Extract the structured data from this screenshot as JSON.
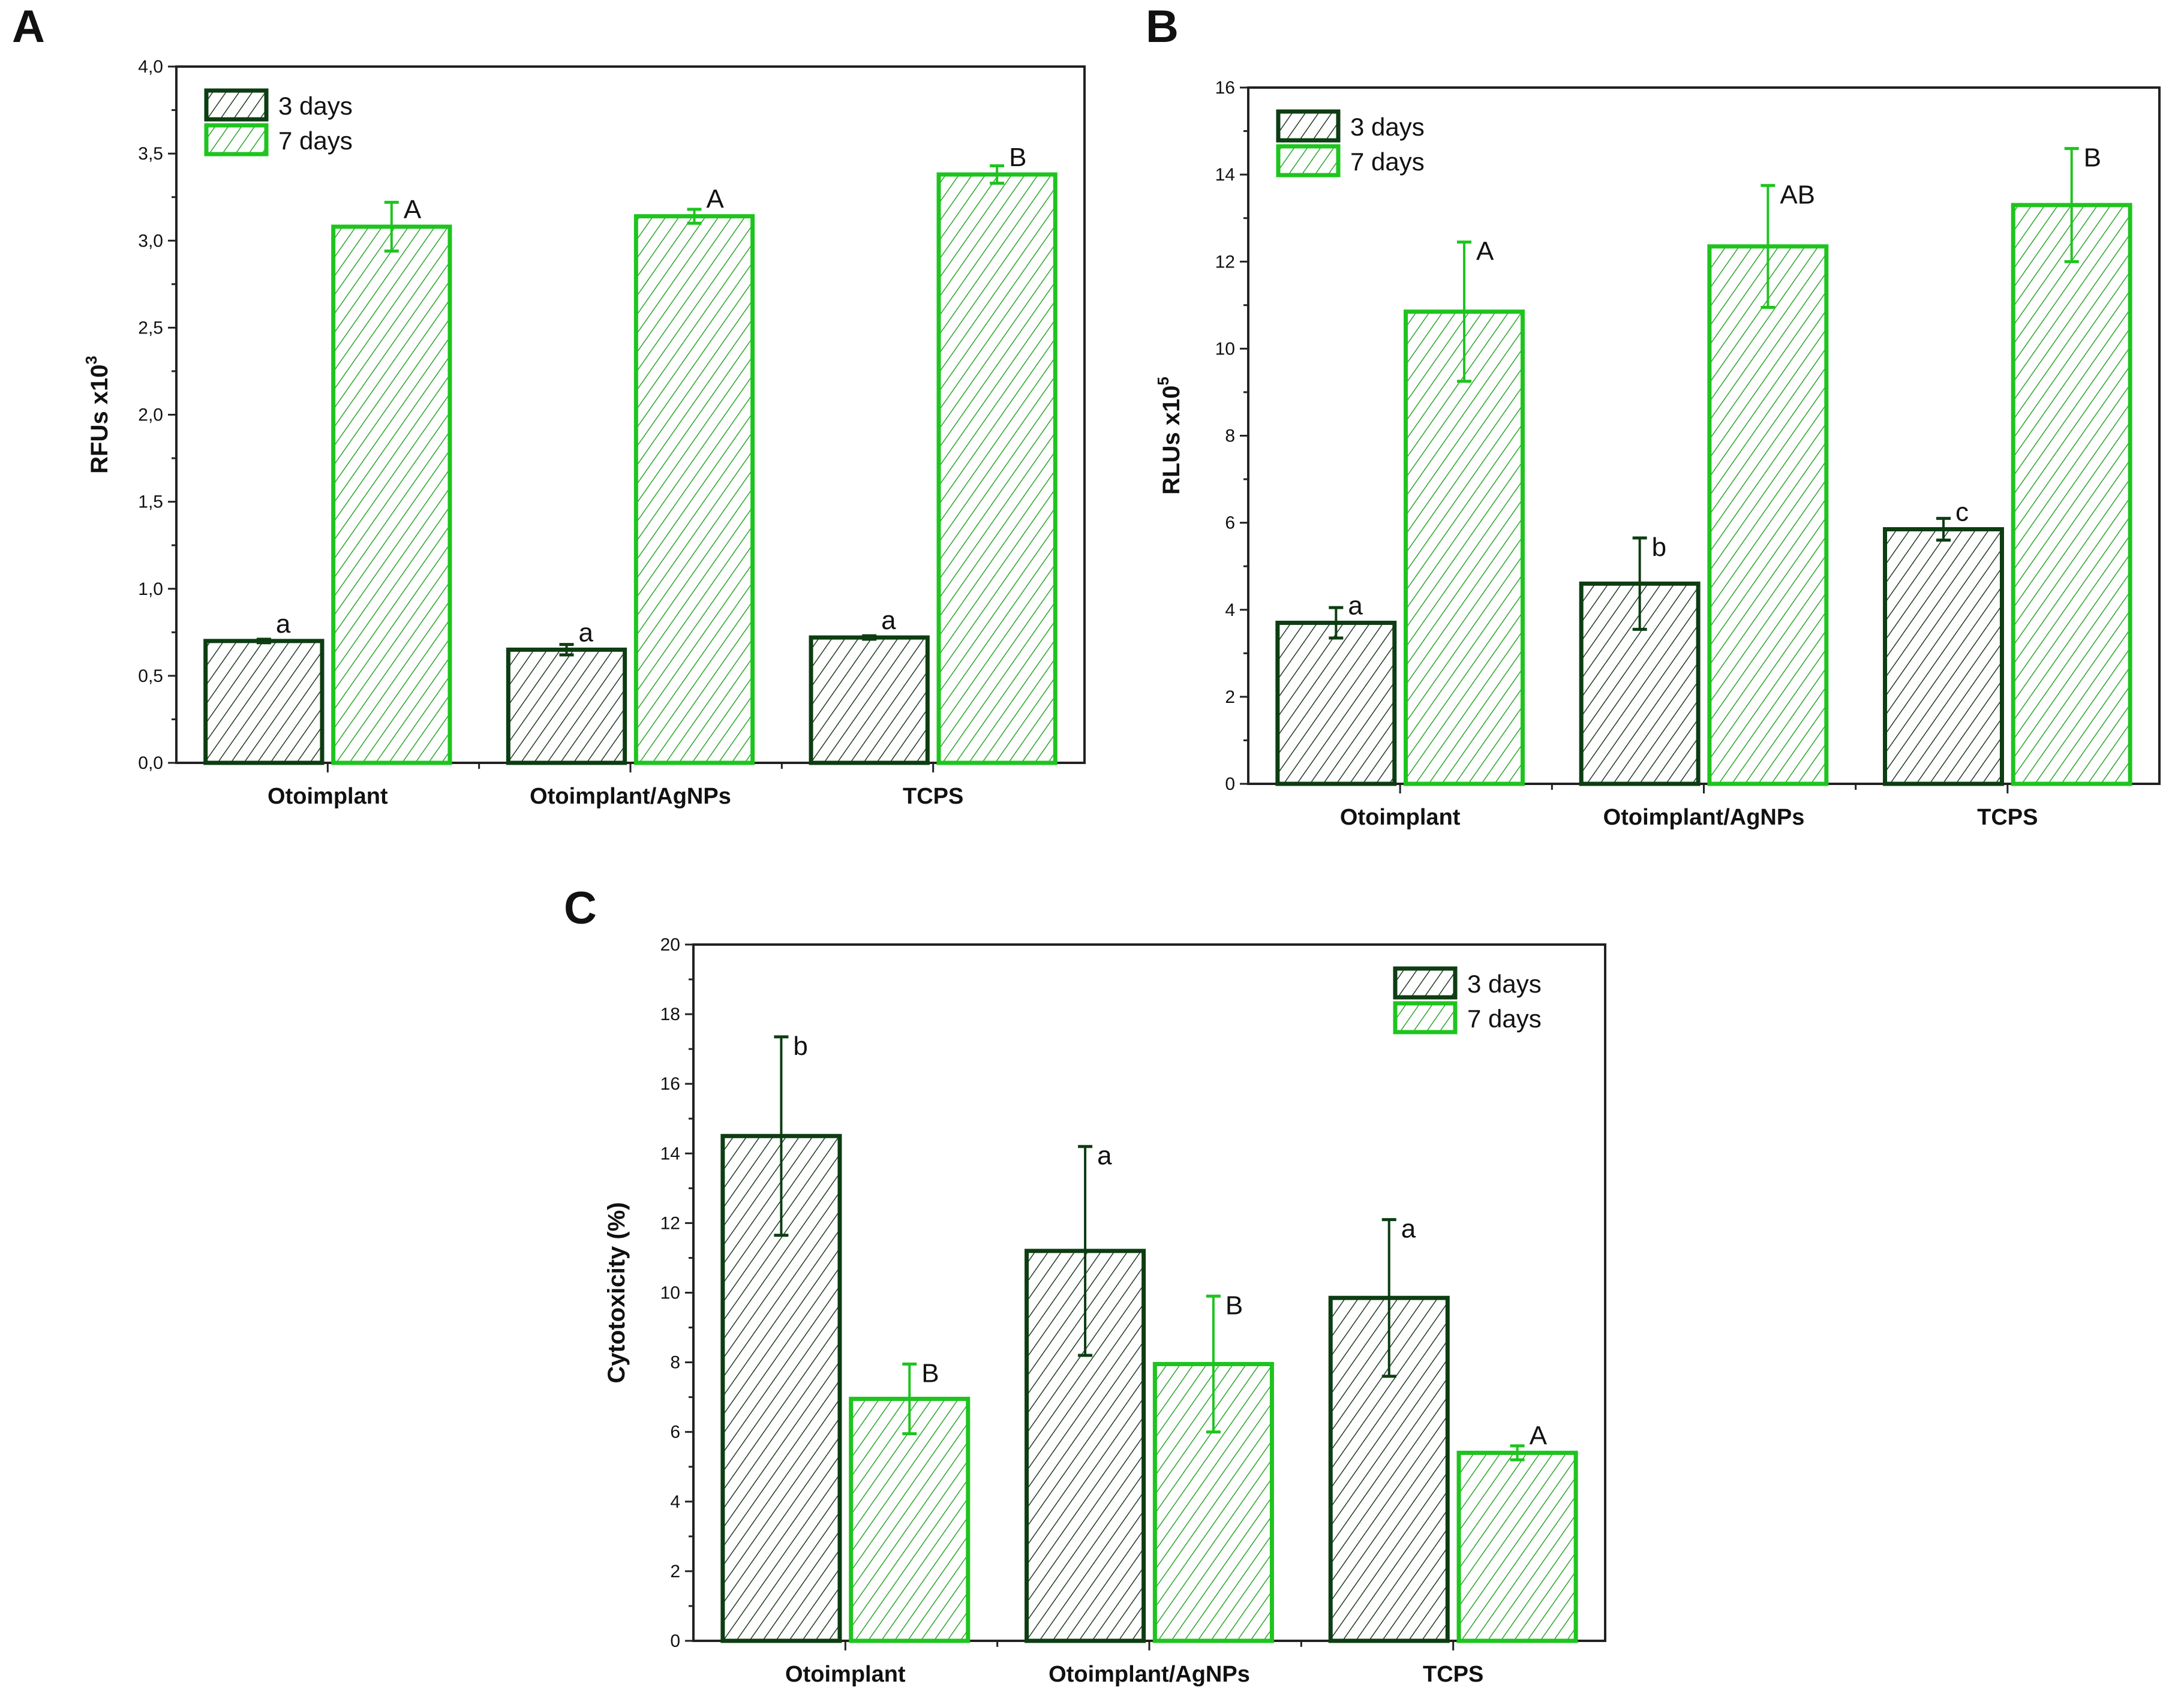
{
  "colors": {
    "day3_stroke": "#0d3d12",
    "day3_hatch": "#1f3a22",
    "day7_stroke": "#1ec41e",
    "day7_hatch": "#2aa52a",
    "axis": "#222222"
  },
  "chart_data": [
    {
      "panel": "A",
      "type": "bar",
      "categories": [
        "Otoimplant",
        "Otoimplant/AgNPs",
        "TCPS"
      ],
      "ylabel": "RFUs x10",
      "ylabel_sup": "3",
      "ylim": [
        0,
        4
      ],
      "ytick_step": 0.5,
      "decimal_comma": true,
      "ytick_decimals": 1,
      "legend": "top-left",
      "series": [
        {
          "name": "3 days",
          "values": [
            0.7,
            0.65,
            0.72
          ],
          "errors": [
            0.01,
            0.03,
            0.01
          ],
          "letters": [
            "a",
            "a",
            "a"
          ]
        },
        {
          "name": "7 days",
          "values": [
            3.08,
            3.14,
            3.38
          ],
          "errors": [
            0.14,
            0.04,
            0.05
          ],
          "letters": [
            "A",
            "A",
            "B"
          ]
        }
      ]
    },
    {
      "panel": "B",
      "type": "bar",
      "categories": [
        "Otoimplant",
        "Otoimplant/AgNPs",
        "TCPS"
      ],
      "ylabel": "RLUs x10",
      "ylabel_sup": "5",
      "ylim": [
        0,
        16
      ],
      "ytick_step": 2,
      "decimal_comma": false,
      "ytick_decimals": 0,
      "legend": "top-left",
      "series": [
        {
          "name": "3 days",
          "values": [
            3.7,
            4.6,
            5.85
          ],
          "errors": [
            0.35,
            1.05,
            0.25
          ],
          "letters": [
            "a",
            "b",
            "c"
          ]
        },
        {
          "name": "7 days",
          "values": [
            10.85,
            12.35,
            13.3
          ],
          "errors": [
            1.6,
            1.4,
            1.3
          ],
          "letters": [
            "A",
            "AB",
            "B"
          ]
        }
      ]
    },
    {
      "panel": "C",
      "type": "bar",
      "categories": [
        "Otoimplant",
        "Otoimplant/AgNPs",
        "TCPS"
      ],
      "ylabel": "Cytotoxicity (%)",
      "ylabel_sup": "",
      "ylim": [
        0,
        20
      ],
      "ytick_step": 2,
      "decimal_comma": false,
      "ytick_decimals": 0,
      "legend": "top-right",
      "series": [
        {
          "name": "3 days",
          "values": [
            14.5,
            11.2,
            9.85
          ],
          "errors": [
            2.85,
            3.0,
            2.25
          ],
          "letters": [
            "b",
            "a",
            "a"
          ]
        },
        {
          "name": "7 days",
          "values": [
            6.95,
            7.95,
            5.4
          ],
          "errors": [
            1.0,
            1.95,
            0.2
          ],
          "letters": [
            "B",
            "B",
            "A"
          ]
        }
      ]
    }
  ]
}
